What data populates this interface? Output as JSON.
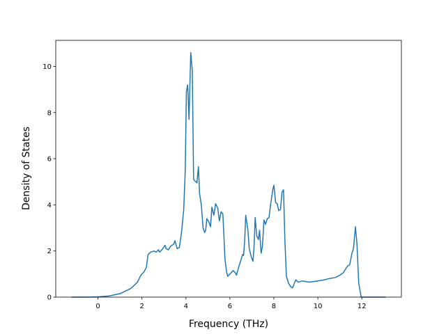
{
  "chart_data": {
    "type": "line",
    "xlabel": "Frequency (THz)",
    "ylabel": "Density of States",
    "xlim": [
      -1.92,
      13.8
    ],
    "ylim": [
      0,
      11.13
    ],
    "xticks": [
      0,
      2,
      4,
      6,
      8,
      10,
      12
    ],
    "yticks": [
      0,
      2,
      4,
      6,
      8,
      10
    ],
    "x": [
      -1.2,
      -0.5,
      0,
      0.5,
      1,
      1.5,
      1.8,
      1.95,
      2.1,
      2.2,
      2.28,
      2.4,
      2.55,
      2.65,
      2.75,
      2.8,
      2.95,
      3.05,
      3.1,
      3.2,
      3.3,
      3.45,
      3.5,
      3.6,
      3.7,
      3.8,
      3.9,
      3.97,
      4.02,
      4.08,
      4.14,
      4.22,
      4.29,
      4.35,
      4.5,
      4.57,
      4.62,
      4.7,
      4.78,
      4.85,
      4.9,
      4.95,
      5.05,
      5.12,
      5.18,
      5.27,
      5.35,
      5.45,
      5.52,
      5.6,
      5.68,
      5.78,
      5.85,
      5.9,
      6.0,
      6.15,
      6.25,
      6.3,
      6.4,
      6.5,
      6.58,
      6.62,
      6.67,
      6.72,
      6.82,
      6.88,
      6.97,
      7.05,
      7.1,
      7.15,
      7.22,
      7.3,
      7.35,
      7.42,
      7.48,
      7.55,
      7.62,
      7.7,
      7.78,
      7.85,
      7.95,
      8.0,
      8.08,
      8.15,
      8.22,
      8.3,
      8.37,
      8.44,
      8.5,
      8.57,
      8.67,
      8.77,
      8.85,
      8.93,
      9.0,
      9.1,
      9.3,
      9.6,
      10,
      10.3,
      10.5,
      10.8,
      11.0,
      11.15,
      11.25,
      11.35,
      11.45,
      11.55,
      11.62,
      11.71,
      11.78,
      11.86,
      11.97,
      12.5,
      13.08
    ],
    "series": [
      {
        "color": "#1f77b4",
        "values": [
          0,
          0,
          0.01,
          0.05,
          0.15,
          0.38,
          0.65,
          0.95,
          1.1,
          1.3,
          1.85,
          1.95,
          2.0,
          1.95,
          2.05,
          1.95,
          2.1,
          2.25,
          2.1,
          2.05,
          2.2,
          2.3,
          2.45,
          2.1,
          2.15,
          2.8,
          3.8,
          5.5,
          8.9,
          9.2,
          7.7,
          10.6,
          9.8,
          5.1,
          4.95,
          5.65,
          4.5,
          4.0,
          3.0,
          2.8,
          2.9,
          3.4,
          3.25,
          3.05,
          3.9,
          3.55,
          4.05,
          3.85,
          3.3,
          3.7,
          3.6,
          1.6,
          1.1,
          0.9,
          1.0,
          1.15,
          1.05,
          0.95,
          1.3,
          1.6,
          1.85,
          1.8,
          2.4,
          3.55,
          2.9,
          2.1,
          1.75,
          1.55,
          2.2,
          3.45,
          2.65,
          2.5,
          2.9,
          1.9,
          2.2,
          3.35,
          3.15,
          3.4,
          3.45,
          4.0,
          4.65,
          4.85,
          4.1,
          4.05,
          3.75,
          3.8,
          4.55,
          4.65,
          2.5,
          0.9,
          0.6,
          0.45,
          0.4,
          0.6,
          0.75,
          0.65,
          0.7,
          0.65,
          0.7,
          0.75,
          0.8,
          0.85,
          0.95,
          1.05,
          1.2,
          1.35,
          1.4,
          1.9,
          2.1,
          3.05,
          2.3,
          0.6,
          0,
          0,
          0
        ]
      }
    ]
  }
}
